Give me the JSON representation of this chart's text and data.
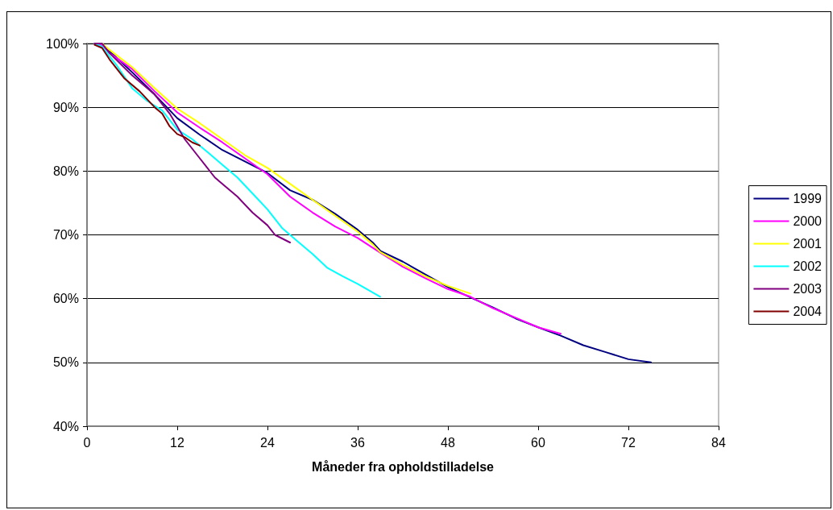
{
  "chart_data": {
    "type": "line",
    "xlabel": "Måneder fra opholdstilladelse",
    "xlim": [
      0,
      84
    ],
    "xticks": [
      0,
      12,
      24,
      36,
      48,
      60,
      72,
      84
    ],
    "ylim": [
      40,
      100
    ],
    "yticks": [
      {
        "value": 40,
        "label": "40%"
      },
      {
        "value": 50,
        "label": "50%"
      },
      {
        "value": 60,
        "label": "60%"
      },
      {
        "value": 70,
        "label": "70%"
      },
      {
        "value": 80,
        "label": "80%"
      },
      {
        "value": 90,
        "label": "90%"
      },
      {
        "value": 100,
        "label": "100%"
      }
    ],
    "grid": "y",
    "legend": "right",
    "marker": "none",
    "line_style": "solid",
    "series": [
      {
        "name": "1999",
        "color": "#000080",
        "x": [
          1,
          2,
          3,
          6,
          9,
          12,
          15,
          18,
          21,
          24,
          27,
          30,
          33,
          36,
          38,
          39,
          42,
          45,
          48,
          51,
          54,
          57,
          60,
          63,
          66,
          69,
          72,
          75
        ],
        "values": [
          100,
          99.8,
          98.8,
          95.5,
          92,
          88.3,
          85.7,
          83.3,
          81.5,
          79.7,
          77,
          75.5,
          73.3,
          70.8,
          68.8,
          67.5,
          65.8,
          63.8,
          61.8,
          60.2,
          58.6,
          56.9,
          55.5,
          54.2,
          52.7,
          51.6,
          50.5,
          50
        ]
      },
      {
        "name": "2000",
        "color": "#ff00ff",
        "x": [
          1,
          2,
          3,
          6,
          9,
          12,
          15,
          18,
          21,
          24,
          27,
          30,
          33,
          36,
          39,
          42,
          45,
          48,
          51,
          54,
          57,
          60,
          63
        ],
        "values": [
          100,
          99.8,
          98.5,
          96,
          92.5,
          89.2,
          86.8,
          84.5,
          82,
          79.5,
          76,
          73.5,
          71.3,
          69.5,
          67.2,
          65,
          63.2,
          61.5,
          60.3,
          58.5,
          57,
          55.5,
          54.5
        ]
      },
      {
        "name": "2001",
        "color": "#ffff00",
        "x": [
          1,
          2,
          3,
          6,
          9,
          12,
          15,
          18,
          21,
          24,
          27,
          30,
          33,
          36,
          38,
          39,
          42,
          45,
          48,
          51
        ],
        "values": [
          100,
          100,
          99,
          96.3,
          93,
          89.8,
          87.5,
          85,
          82.5,
          80.5,
          78,
          75.5,
          73,
          70.5,
          68.5,
          67.3,
          65.3,
          63.5,
          62,
          60.8
        ]
      },
      {
        "name": "2002",
        "color": "#00ffff",
        "x": [
          1,
          2,
          4,
          6,
          8,
          10,
          12,
          14,
          16,
          18,
          20,
          22,
          24,
          26,
          28,
          30,
          32,
          34,
          36,
          39
        ],
        "values": [
          100,
          99.5,
          96.5,
          93,
          91,
          89.5,
          86.5,
          85,
          83,
          81,
          79,
          76.5,
          74,
          71,
          69,
          67,
          64.8,
          63.5,
          62.3,
          60.3
        ]
      },
      {
        "name": "2003",
        "color": "#800080",
        "x": [
          1,
          2,
          3,
          6,
          9,
          11,
          13,
          15,
          17,
          18,
          20,
          22,
          24,
          25,
          27
        ],
        "values": [
          100,
          100,
          98.5,
          95,
          92,
          89,
          85,
          82,
          79,
          78,
          76,
          73.5,
          71.5,
          70,
          68.8
        ]
      },
      {
        "name": "2004",
        "color": "#800000",
        "x": [
          1,
          2,
          3,
          5,
          7,
          9,
          10,
          11,
          12,
          13,
          14,
          15
        ],
        "values": [
          99.8,
          99.3,
          97.5,
          94.5,
          92.5,
          90,
          89,
          87,
          85.8,
          85.3,
          84.5,
          84
        ]
      }
    ]
  }
}
